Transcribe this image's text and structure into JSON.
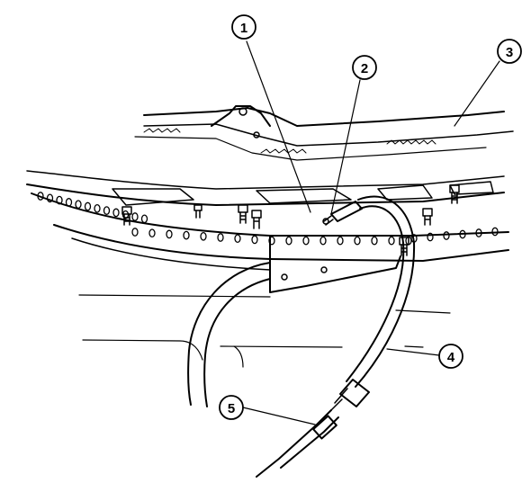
{
  "callouts": [
    {
      "id": "1",
      "label": "1"
    },
    {
      "id": "2",
      "label": "2"
    },
    {
      "id": "3",
      "label": "3"
    },
    {
      "id": "4",
      "label": "4"
    },
    {
      "id": "5",
      "label": "5"
    }
  ],
  "colors": {
    "ink": "#000000",
    "background": "#ffffff"
  }
}
